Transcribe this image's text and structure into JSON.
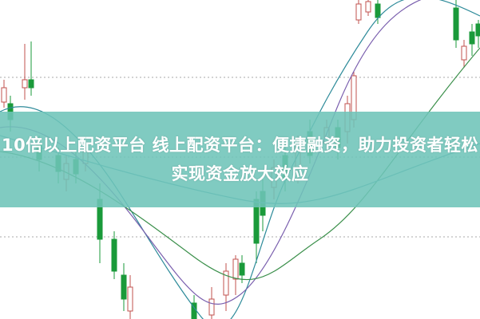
{
  "article": {
    "title": "10倍以上配资平台 线上配资平台：便捷融资，助力投资者轻松实现资金放大效应"
  },
  "background": {
    "description_type": "candlestick-chart-image",
    "up_color": "#c0504d",
    "down_color": "#1a9a3a",
    "ma_colors": [
      "#2e8b9a",
      "#7a5fae",
      "#3a8f4a"
    ],
    "banner_color": "#6ec4b8"
  }
}
